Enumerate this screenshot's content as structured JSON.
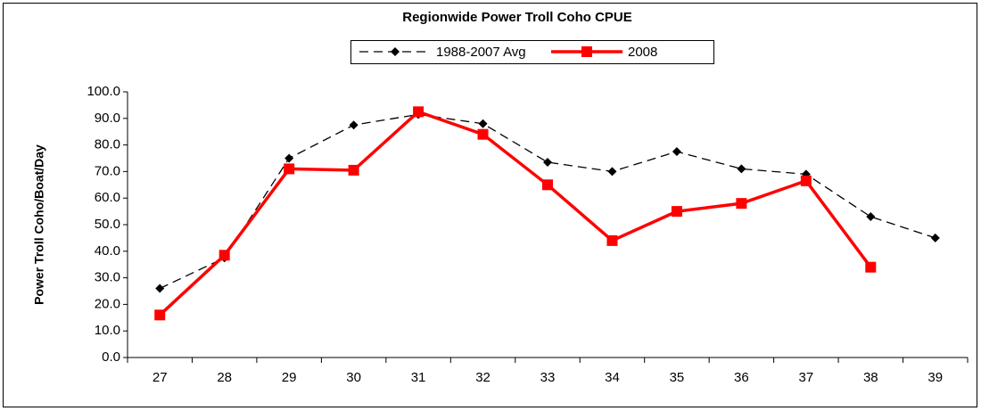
{
  "chart_data": {
    "type": "line",
    "title": "Regionwide Power Troll Coho CPUE",
    "ylabel": "Power Troll Coho/Boat/Day",
    "categories": [
      "27",
      "28",
      "29",
      "30",
      "31",
      "32",
      "33",
      "34",
      "35",
      "36",
      "37",
      "38",
      "39"
    ],
    "series": [
      {
        "name": "1988-2007 Avg",
        "color": "#000000",
        "dashed": true,
        "marker": "diamond",
        "values": [
          26,
          37.5,
          75,
          87.5,
          91.5,
          88,
          73.5,
          70,
          77.5,
          71,
          69,
          53,
          45
        ]
      },
      {
        "name": "2008",
        "color": "#ff0000",
        "dashed": false,
        "marker": "square",
        "values": [
          16,
          38.5,
          71,
          70.5,
          92.5,
          84,
          65,
          44,
          55,
          58,
          66.5,
          34,
          null
        ]
      }
    ],
    "ylim": [
      0,
      100
    ],
    "yticks": [
      {
        "value": 0,
        "label": "0.0"
      },
      {
        "value": 10,
        "label": "10.0"
      },
      {
        "value": 20,
        "label": "20.0"
      },
      {
        "value": 30,
        "label": "30.0"
      },
      {
        "value": 40,
        "label": "40.0"
      },
      {
        "value": 50,
        "label": "50.0"
      },
      {
        "value": 60,
        "label": "60.0"
      },
      {
        "value": 70,
        "label": "70.0"
      },
      {
        "value": 80,
        "label": "80.0"
      },
      {
        "value": 90,
        "label": "90.0"
      },
      {
        "value": 100,
        "label": "100.0"
      }
    ],
    "grid": false,
    "legend": "top"
  }
}
